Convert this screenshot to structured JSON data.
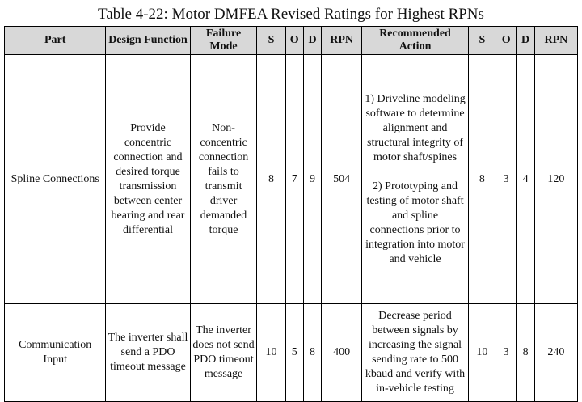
{
  "caption": "Table 4-22: Motor DMFEA Revised Ratings for Highest RPNs",
  "headers": {
    "part": "Part",
    "design_function": "Design Function",
    "failure_mode": "Failure Mode",
    "s1": "S",
    "o1": "O",
    "d1": "D",
    "rpn1": "RPN",
    "recommended_action": "Recommended Action",
    "s2": "S",
    "o2": "O",
    "d2": "D",
    "rpn2": "RPN"
  },
  "rows": [
    {
      "part": "Spline Connections",
      "design_function": "Provide concentric connection and desired torque transmission between center bearing and rear differential",
      "failure_mode": "Non-concentric connection fails to transmit driver demanded torque",
      "s": "8",
      "o": "7",
      "d": "9",
      "rpn": "504",
      "action_1": "1) Driveline modeling software to determine alignment and structural integrity of motor shaft/spines",
      "action_2": "2) Prototyping and testing of motor shaft and spline connections prior to integration into motor and vehicle",
      "s2": "8",
      "o2": "3",
      "d2": "4",
      "rpn2": "120"
    },
    {
      "part": "Communication Input",
      "design_function": "The inverter shall send a PDO timeout message",
      "failure_mode": "The inverter does not send PDO timeout message",
      "s": "10",
      "o": "5",
      "d": "8",
      "rpn": "400",
      "action_1": "Decrease period between signals by increasing the signal sending rate to 500 kbaud and verify with in-vehicle testing",
      "s2": "10",
      "o2": "3",
      "d2": "8",
      "rpn2": "240"
    }
  ]
}
